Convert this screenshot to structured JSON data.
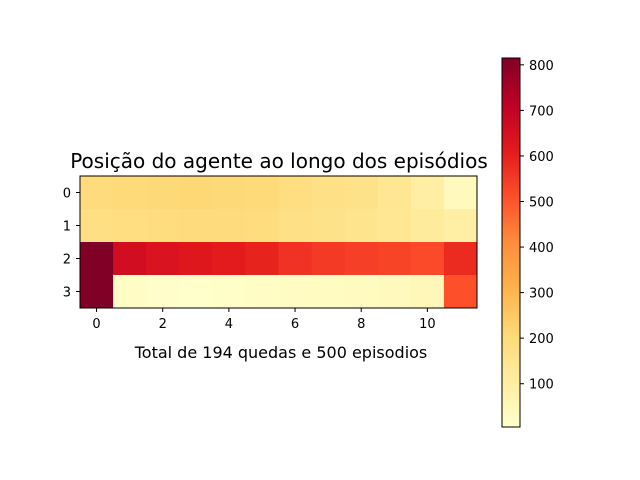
{
  "chart_data": {
    "type": "heatmap",
    "title": "Posição do agente ao longo dos episódios",
    "xlabel": "Total de 194 quedas e 500 episodios",
    "ylabel": "",
    "colormap": "YlOrRd",
    "rows": 4,
    "cols": 12,
    "x_ticks": [
      0,
      2,
      4,
      6,
      8,
      10
    ],
    "y_ticks": [
      0,
      1,
      2,
      3
    ],
    "x_tick_labels": [
      "0",
      "2",
      "4",
      "6",
      "8",
      "10"
    ],
    "y_tick_labels": [
      "0",
      "1",
      "2",
      "3"
    ],
    "values": [
      [
        190,
        200,
        205,
        210,
        205,
        200,
        180,
        170,
        160,
        140,
        100,
        40
      ],
      [
        175,
        180,
        185,
        190,
        190,
        185,
        170,
        160,
        150,
        135,
        115,
        95
      ],
      [
        815,
        660,
        640,
        625,
        610,
        595,
        565,
        550,
        540,
        530,
        520,
        580
      ],
      [
        815,
        20,
        10,
        5,
        15,
        20,
        25,
        30,
        35,
        40,
        50,
        510
      ]
    ],
    "colorbar": {
      "vmin": 5,
      "vmax": 815,
      "ticks": [
        100,
        200,
        300,
        400,
        500,
        600,
        700,
        800
      ],
      "tick_labels": [
        "100",
        "200",
        "300",
        "400",
        "500",
        "600",
        "700",
        "800"
      ]
    }
  }
}
